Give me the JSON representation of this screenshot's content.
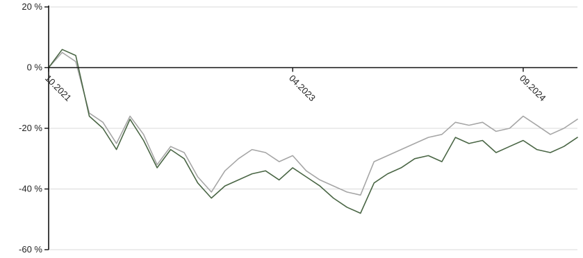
{
  "chart_data": {
    "type": "line",
    "title": "",
    "xlabel": "",
    "ylabel": "",
    "y_ticks": [
      "20 %",
      "0 %",
      "-20 %",
      "-40 %",
      "-60 %"
    ],
    "y_tick_values": [
      20,
      0,
      -20,
      -40,
      -60
    ],
    "ylim": [
      -60,
      20
    ],
    "x_ticks": [
      "10.2021",
      "04.2023",
      "09.2024"
    ],
    "x_tick_values": [
      "2021-10",
      "2023-04",
      "2024-09"
    ],
    "xlim": [
      "2021-10",
      "2025-01"
    ],
    "grid": "horizontal",
    "legend": "none",
    "series": [
      {
        "color": "#a6a6a6",
        "x": [
          "2021-10",
          "2021-11",
          "2021-12",
          "2022-01",
          "2022-02",
          "2022-03",
          "2022-04",
          "2022-05",
          "2022-06",
          "2022-07",
          "2022-08",
          "2022-09",
          "2022-10",
          "2022-11",
          "2022-12",
          "2023-01",
          "2023-02",
          "2023-03",
          "2023-04",
          "2023-05",
          "2023-06",
          "2023-07",
          "2023-08",
          "2023-09",
          "2023-10",
          "2023-11",
          "2023-12",
          "2024-01",
          "2024-02",
          "2024-03",
          "2024-04",
          "2024-05",
          "2024-06",
          "2024-07",
          "2024-08",
          "2024-09",
          "2024-10",
          "2024-11",
          "2024-12",
          "2025-01"
        ],
        "values": [
          0,
          5,
          2,
          -15,
          -18,
          -25,
          -16,
          -22,
          -32,
          -26,
          -28,
          -36,
          -41,
          -34,
          -30,
          -27,
          -28,
          -31,
          -29,
          -34,
          -37,
          -39,
          -41,
          -42,
          -31,
          -29,
          -27,
          -25,
          -23,
          -22,
          -18,
          -19,
          -18,
          -21,
          -20,
          -16,
          -19,
          -22,
          -20,
          -17
        ]
      },
      {
        "color": "#4a6645",
        "x": [
          "2021-10",
          "2021-11",
          "2021-12",
          "2022-01",
          "2022-02",
          "2022-03",
          "2022-04",
          "2022-05",
          "2022-06",
          "2022-07",
          "2022-08",
          "2022-09",
          "2022-10",
          "2022-11",
          "2022-12",
          "2023-01",
          "2023-02",
          "2023-03",
          "2023-04",
          "2023-05",
          "2023-06",
          "2023-07",
          "2023-08",
          "2023-09",
          "2023-10",
          "2023-11",
          "2023-12",
          "2024-01",
          "2024-02",
          "2024-03",
          "2024-04",
          "2024-05",
          "2024-06",
          "2024-07",
          "2024-08",
          "2024-09",
          "2024-10",
          "2024-11",
          "2024-12",
          "2025-01"
        ],
        "values": [
          0,
          6,
          4,
          -16,
          -20,
          -27,
          -17,
          -24,
          -33,
          -27,
          -30,
          -38,
          -43,
          -39,
          -37,
          -35,
          -34,
          -37,
          -33,
          -36,
          -39,
          -43,
          -46,
          -48,
          -38,
          -35,
          -33,
          -30,
          -29,
          -31,
          -23,
          -25,
          -24,
          -28,
          -26,
          -24,
          -27,
          -28,
          -26,
          -23
        ]
      }
    ]
  }
}
